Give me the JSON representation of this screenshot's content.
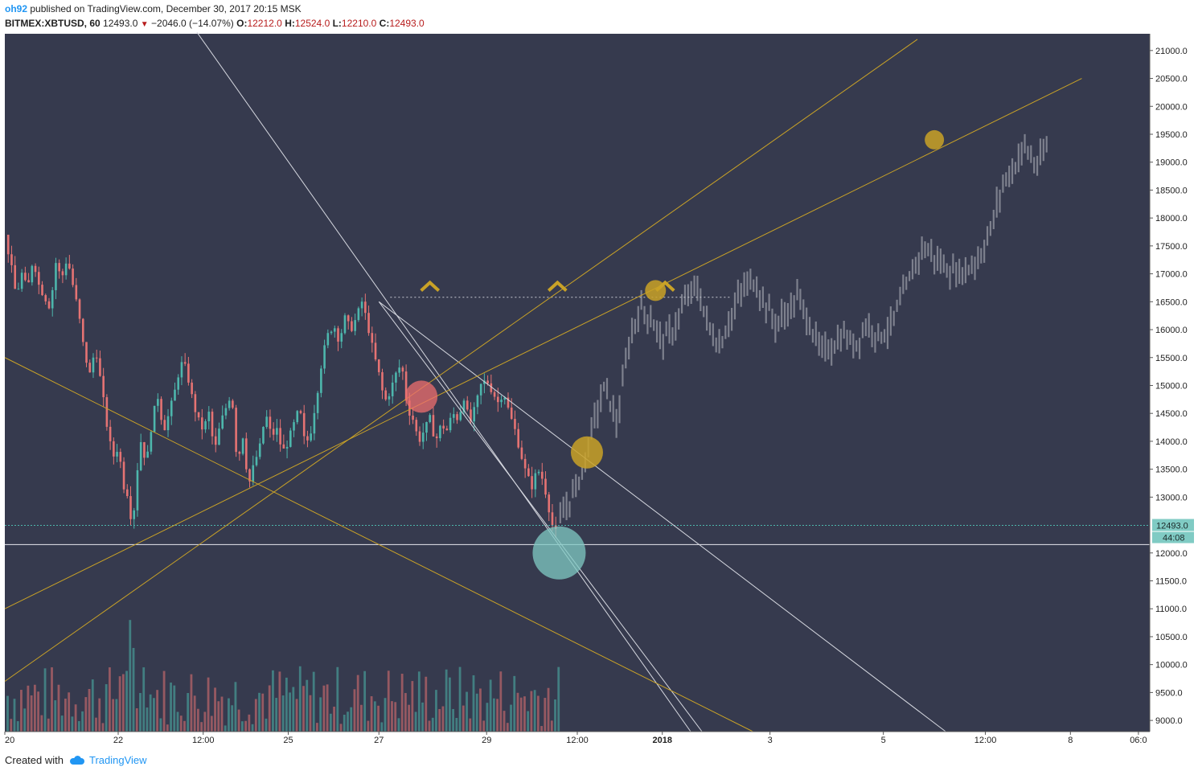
{
  "header": {
    "author": "oh92",
    "published_text": " published on TradingView.com, December 30, 2017 20:15 MSK",
    "symbol": "BITMEX:XBTUSD, 60",
    "last": "12493.0",
    "change": "−2046.0 (−14.07%)",
    "o_label": "O:",
    "o_value": "12212.0",
    "h_label": "H:",
    "h_value": "12524.0",
    "l_label": "L:",
    "l_value": "12210.0",
    "c_label": "C:",
    "c_value": "12493.0"
  },
  "footer": {
    "created_with": "Created with",
    "brand": "TradingView"
  },
  "colors": {
    "background": "#363a4e",
    "up": "#4db6ac",
    "down": "#e57373",
    "projection": "#8a8d99",
    "yellow_line": "#c9a227",
    "white_line": "#d6d8e0",
    "marker_red": "#ef6f6f",
    "marker_teal": "#80cbc4",
    "marker_gold": "#c9a227",
    "price_label": "#80cbc4"
  },
  "chart_data": {
    "type": "candlestick",
    "symbol": "BITMEX:XBTUSD",
    "interval": "60",
    "ylim": [
      8800,
      21300
    ],
    "y_ticks": [
      "21000.0",
      "20500.0",
      "20000.0",
      "19500.0",
      "19000.0",
      "18500.0",
      "18000.0",
      "17500.0",
      "17000.0",
      "16500.0",
      "16000.0",
      "15500.0",
      "15000.0",
      "14500.0",
      "14000.0",
      "13500.0",
      "13000.0",
      "12000.0",
      "11500.0",
      "11000.0",
      "10500.0",
      "10000.0",
      "9500.0",
      "9000.0"
    ],
    "x_ticks": [
      "20",
      "22",
      "12:00",
      "25",
      "27",
      "29",
      "12:00",
      "2018",
      "3",
      "5",
      "12:00",
      "8",
      "06:0"
    ],
    "current_price_label": "12493.0",
    "countdown_label": "44:08",
    "current_price": 12493,
    "support_level": 12150,
    "dotted_level": 16580,
    "actual_path": [
      [
        0,
        17700
      ],
      [
        0.1,
        17200
      ],
      [
        0.2,
        16600
      ],
      [
        0.3,
        17000
      ],
      [
        0.4,
        16700
      ],
      [
        0.5,
        17300
      ],
      [
        0.6,
        16800
      ],
      [
        0.7,
        16600
      ],
      [
        0.8,
        16400
      ],
      [
        0.9,
        17200
      ],
      [
        1.0,
        16900
      ],
      [
        1.1,
        17300
      ],
      [
        1.2,
        16800
      ],
      [
        1.3,
        16300
      ],
      [
        1.4,
        15600
      ],
      [
        1.5,
        15200
      ],
      [
        1.6,
        15700
      ],
      [
        1.7,
        15000
      ],
      [
        1.8,
        14300
      ],
      [
        1.9,
        13700
      ],
      [
        2.0,
        13900
      ],
      [
        2.1,
        13200
      ],
      [
        2.2,
        13000
      ],
      [
        2.25,
        12200
      ],
      [
        2.3,
        13200
      ],
      [
        2.4,
        14000
      ],
      [
        2.5,
        13600
      ],
      [
        2.6,
        14400
      ],
      [
        2.7,
        14800
      ],
      [
        2.8,
        14200
      ],
      [
        2.9,
        14500
      ],
      [
        3.0,
        14900
      ],
      [
        3.1,
        15400
      ],
      [
        3.2,
        15300
      ],
      [
        3.3,
        14800
      ],
      [
        3.4,
        14400
      ],
      [
        3.5,
        14200
      ],
      [
        3.6,
        14500
      ],
      [
        3.7,
        13800
      ],
      [
        3.8,
        14300
      ],
      [
        3.9,
        14600
      ],
      [
        4.0,
        14900
      ],
      [
        4.1,
        13600
      ],
      [
        4.2,
        14100
      ],
      [
        4.3,
        13200
      ],
      [
        4.4,
        13600
      ],
      [
        4.5,
        13900
      ],
      [
        4.6,
        14500
      ],
      [
        4.7,
        14100
      ],
      [
        4.8,
        14200
      ],
      [
        4.9,
        13800
      ],
      [
        5.0,
        14000
      ],
      [
        5.1,
        14300
      ],
      [
        5.2,
        14600
      ],
      [
        5.3,
        13900
      ],
      [
        5.4,
        14200
      ],
      [
        5.5,
        14800
      ],
      [
        5.6,
        15500
      ],
      [
        5.7,
        15900
      ],
      [
        5.8,
        16100
      ],
      [
        5.9,
        15800
      ],
      [
        6.0,
        16200
      ],
      [
        6.1,
        16000
      ],
      [
        6.2,
        16200
      ],
      [
        6.3,
        16500
      ],
      [
        6.4,
        16100
      ],
      [
        6.5,
        15600
      ],
      [
        6.6,
        15200
      ],
      [
        6.7,
        14700
      ],
      [
        6.8,
        14900
      ],
      [
        6.9,
        15200
      ],
      [
        7.0,
        15400
      ],
      [
        7.1,
        14600
      ],
      [
        7.2,
        14400
      ],
      [
        7.3,
        14000
      ],
      [
        7.4,
        14200
      ],
      [
        7.5,
        14400
      ],
      [
        7.6,
        14000
      ],
      [
        7.7,
        14300
      ],
      [
        7.8,
        14200
      ],
      [
        7.9,
        14500
      ],
      [
        8.0,
        14400
      ],
      [
        8.1,
        14800
      ],
      [
        8.2,
        14300
      ],
      [
        8.3,
        14600
      ],
      [
        8.4,
        15000
      ],
      [
        8.5,
        15100
      ],
      [
        8.6,
        14900
      ],
      [
        8.7,
        14700
      ],
      [
        8.8,
        14900
      ],
      [
        8.9,
        14500
      ],
      [
        9.0,
        14200
      ],
      [
        9.1,
        13800
      ],
      [
        9.2,
        13400
      ],
      [
        9.3,
        13200
      ],
      [
        9.4,
        13500
      ],
      [
        9.5,
        13300
      ],
      [
        9.6,
        12800
      ],
      [
        9.7,
        12300
      ],
      [
        9.76,
        12493
      ]
    ],
    "projection_path": [
      [
        9.8,
        12600
      ],
      [
        10.0,
        13000
      ],
      [
        10.2,
        13500
      ],
      [
        10.4,
        14400
      ],
      [
        10.6,
        15000
      ],
      [
        10.8,
        14300
      ],
      [
        11.0,
        15700
      ],
      [
        11.2,
        16400
      ],
      [
        11.4,
        16200
      ],
      [
        11.6,
        15800
      ],
      [
        11.8,
        16000
      ],
      [
        12.0,
        16500
      ],
      [
        12.2,
        16800
      ],
      [
        12.4,
        16100
      ],
      [
        12.6,
        15700
      ],
      [
        12.8,
        16200
      ],
      [
        13.0,
        16700
      ],
      [
        13.2,
        16900
      ],
      [
        13.4,
        16500
      ],
      [
        13.6,
        16100
      ],
      [
        13.8,
        16300
      ],
      [
        14.0,
        16600
      ],
      [
        14.2,
        16100
      ],
      [
        14.4,
        15600
      ],
      [
        14.6,
        15700
      ],
      [
        14.8,
        15900
      ],
      [
        15.0,
        15700
      ],
      [
        15.2,
        16100
      ],
      [
        15.4,
        15900
      ],
      [
        15.6,
        16000
      ],
      [
        15.8,
        16500
      ],
      [
        16.0,
        17000
      ],
      [
        16.2,
        17500
      ],
      [
        16.4,
        17300
      ],
      [
        16.6,
        17100
      ],
      [
        16.8,
        17000
      ],
      [
        17.0,
        17100
      ],
      [
        17.2,
        17300
      ],
      [
        17.4,
        17800
      ],
      [
        17.6,
        18600
      ],
      [
        17.8,
        18900
      ],
      [
        18.0,
        19300
      ],
      [
        18.2,
        18900
      ],
      [
        18.4,
        19300
      ]
    ],
    "trendlines": [
      {
        "color": "white",
        "from": [
          3.2,
          21600
        ],
        "to": [
          12.1,
          8800
        ]
      },
      {
        "color": "white",
        "from": [
          6.6,
          16500
        ],
        "to": [
          16.6,
          8800
        ]
      },
      {
        "color": "white",
        "from": [
          6.6,
          16500
        ],
        "to": [
          12.3,
          8800
        ]
      },
      {
        "color": "yellow",
        "from": [
          0,
          15500
        ],
        "to": [
          13.2,
          8800
        ]
      },
      {
        "color": "yellow",
        "from": [
          0,
          9700
        ],
        "to": [
          16.1,
          21200
        ]
      },
      {
        "color": "yellow",
        "from": [
          0,
          11000
        ],
        "to": [
          19.0,
          20500
        ]
      }
    ],
    "markers": [
      {
        "color": "red",
        "t": 7.35,
        "v": 14800,
        "r": 20
      },
      {
        "color": "teal",
        "t": 9.78,
        "v": 12000,
        "r": 33
      },
      {
        "color": "gold",
        "t": 10.27,
        "v": 13800,
        "r": 20
      },
      {
        "color": "gold",
        "t": 11.48,
        "v": 16700,
        "r": 13
      },
      {
        "color": "gold",
        "t": 16.4,
        "v": 19400,
        "r": 12
      }
    ],
    "chevrons": [
      {
        "t": 7.5,
        "v": 16800
      },
      {
        "t": 9.75,
        "v": 16800
      },
      {
        "t": 11.65,
        "v": 16800
      }
    ]
  }
}
